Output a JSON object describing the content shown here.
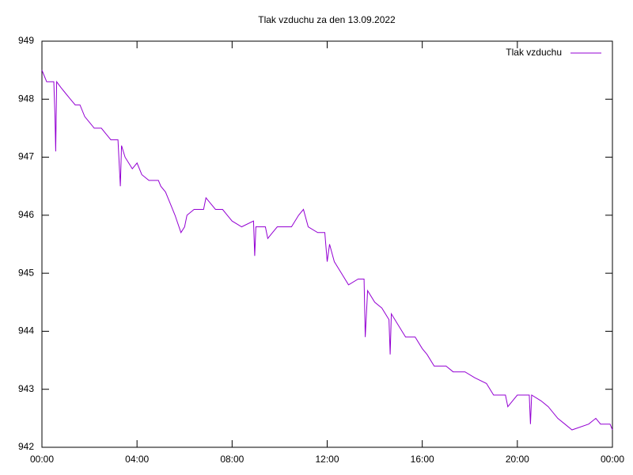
{
  "chart_data": {
    "type": "line",
    "title": "Tlak vzduchu za den 13.09.2022",
    "x": [
      0,
      0.1,
      0.2,
      0.5,
      0.55,
      0.58,
      0.62,
      0.8,
      1.0,
      1.2,
      1.4,
      1.6,
      1.8,
      2.0,
      2.2,
      2.5,
      2.7,
      2.9,
      3.2,
      3.3,
      3.35,
      3.5,
      3.8,
      4.0,
      4.2,
      4.5,
      4.9,
      5.0,
      5.2,
      5.4,
      5.6,
      5.85,
      6.0,
      6.1,
      6.4,
      6.8,
      6.9,
      7.1,
      7.3,
      7.6,
      7.8,
      8.0,
      8.4,
      8.9,
      8.95,
      9.0,
      9.4,
      9.5,
      9.7,
      9.9,
      10.1,
      10.5,
      10.8,
      11.0,
      11.2,
      11.6,
      11.9,
      12.0,
      12.1,
      12.3,
      12.6,
      12.9,
      13.3,
      13.55,
      13.6,
      13.7,
      14.0,
      14.3,
      14.6,
      14.65,
      14.7,
      15.0,
      15.3,
      15.7,
      16.0,
      16.2,
      16.5,
      17.0,
      17.3,
      17.8,
      18.2,
      18.7,
      19.0,
      19.5,
      19.6,
      20.0,
      20.5,
      20.55,
      20.6,
      21.0,
      21.3,
      21.7,
      22.0,
      22.3,
      23.0,
      23.3,
      23.5,
      23.9,
      24.0
    ],
    "series": [
      {
        "name": "Tlak vzduchu",
        "color": "#9400d3",
        "values": [
          948.5,
          948.4,
          948.3,
          948.3,
          947.7,
          947.1,
          948.3,
          948.2,
          948.1,
          948.0,
          947.9,
          947.9,
          947.7,
          947.6,
          947.5,
          947.5,
          947.4,
          947.3,
          947.3,
          946.5,
          947.2,
          947.0,
          946.8,
          946.9,
          946.7,
          946.6,
          946.6,
          946.5,
          946.4,
          946.2,
          946.0,
          945.7,
          945.8,
          946.0,
          946.1,
          946.1,
          946.3,
          946.2,
          946.1,
          946.1,
          946.0,
          945.9,
          945.8,
          945.9,
          945.3,
          945.8,
          945.8,
          945.6,
          945.7,
          945.8,
          945.8,
          945.8,
          946.0,
          946.1,
          945.8,
          945.7,
          945.7,
          945.2,
          945.5,
          945.2,
          945.0,
          944.8,
          944.9,
          944.9,
          943.9,
          944.7,
          944.5,
          944.4,
          944.2,
          943.6,
          944.3,
          944.1,
          943.9,
          943.9,
          943.7,
          943.6,
          943.4,
          943.4,
          943.3,
          943.3,
          943.2,
          943.1,
          942.9,
          942.9,
          942.7,
          942.9,
          942.9,
          942.4,
          942.9,
          942.8,
          942.7,
          942.5,
          942.4,
          942.3,
          942.4,
          942.5,
          942.4,
          942.4,
          942.3
        ]
      }
    ],
    "xlim": [
      0,
      24
    ],
    "xticks": [
      {
        "value": 0,
        "label": "00:00"
      },
      {
        "value": 4,
        "label": "04:00"
      },
      {
        "value": 8,
        "label": "08:00"
      },
      {
        "value": 12,
        "label": "12:00"
      },
      {
        "value": 16,
        "label": "16:00"
      },
      {
        "value": 20,
        "label": "20:00"
      },
      {
        "value": 24,
        "label": "00:00"
      }
    ],
    "ylim": [
      942,
      949
    ],
    "yticks": [
      942,
      943,
      944,
      945,
      946,
      947,
      948,
      949
    ],
    "legend": "top-right"
  }
}
